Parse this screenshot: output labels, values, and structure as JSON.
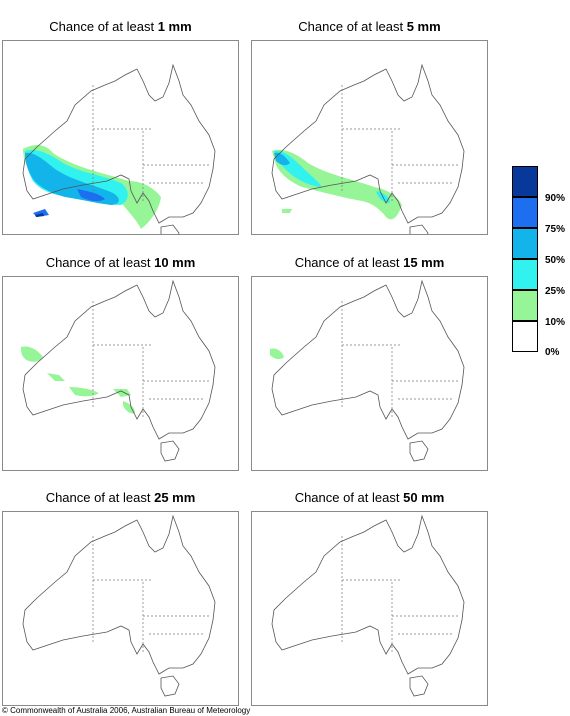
{
  "title_prefix": "Chance of at least",
  "panels": [
    {
      "amount": "1 mm"
    },
    {
      "amount": "5 mm"
    },
    {
      "amount": "10 mm"
    },
    {
      "amount": "15 mm"
    },
    {
      "amount": "25 mm"
    },
    {
      "amount": "50 mm"
    }
  ],
  "legend": {
    "colors": [
      "#06399a",
      "#1e6ff0",
      "#12b4ea",
      "#32f2f0",
      "#96f596",
      "#ffffff"
    ],
    "labels": [
      "90%",
      "75%",
      "50%",
      "25%",
      "10%",
      "0%"
    ]
  },
  "copyright": "© Commonwealth of Australia 2006, Australian Bureau of Meteorology"
}
